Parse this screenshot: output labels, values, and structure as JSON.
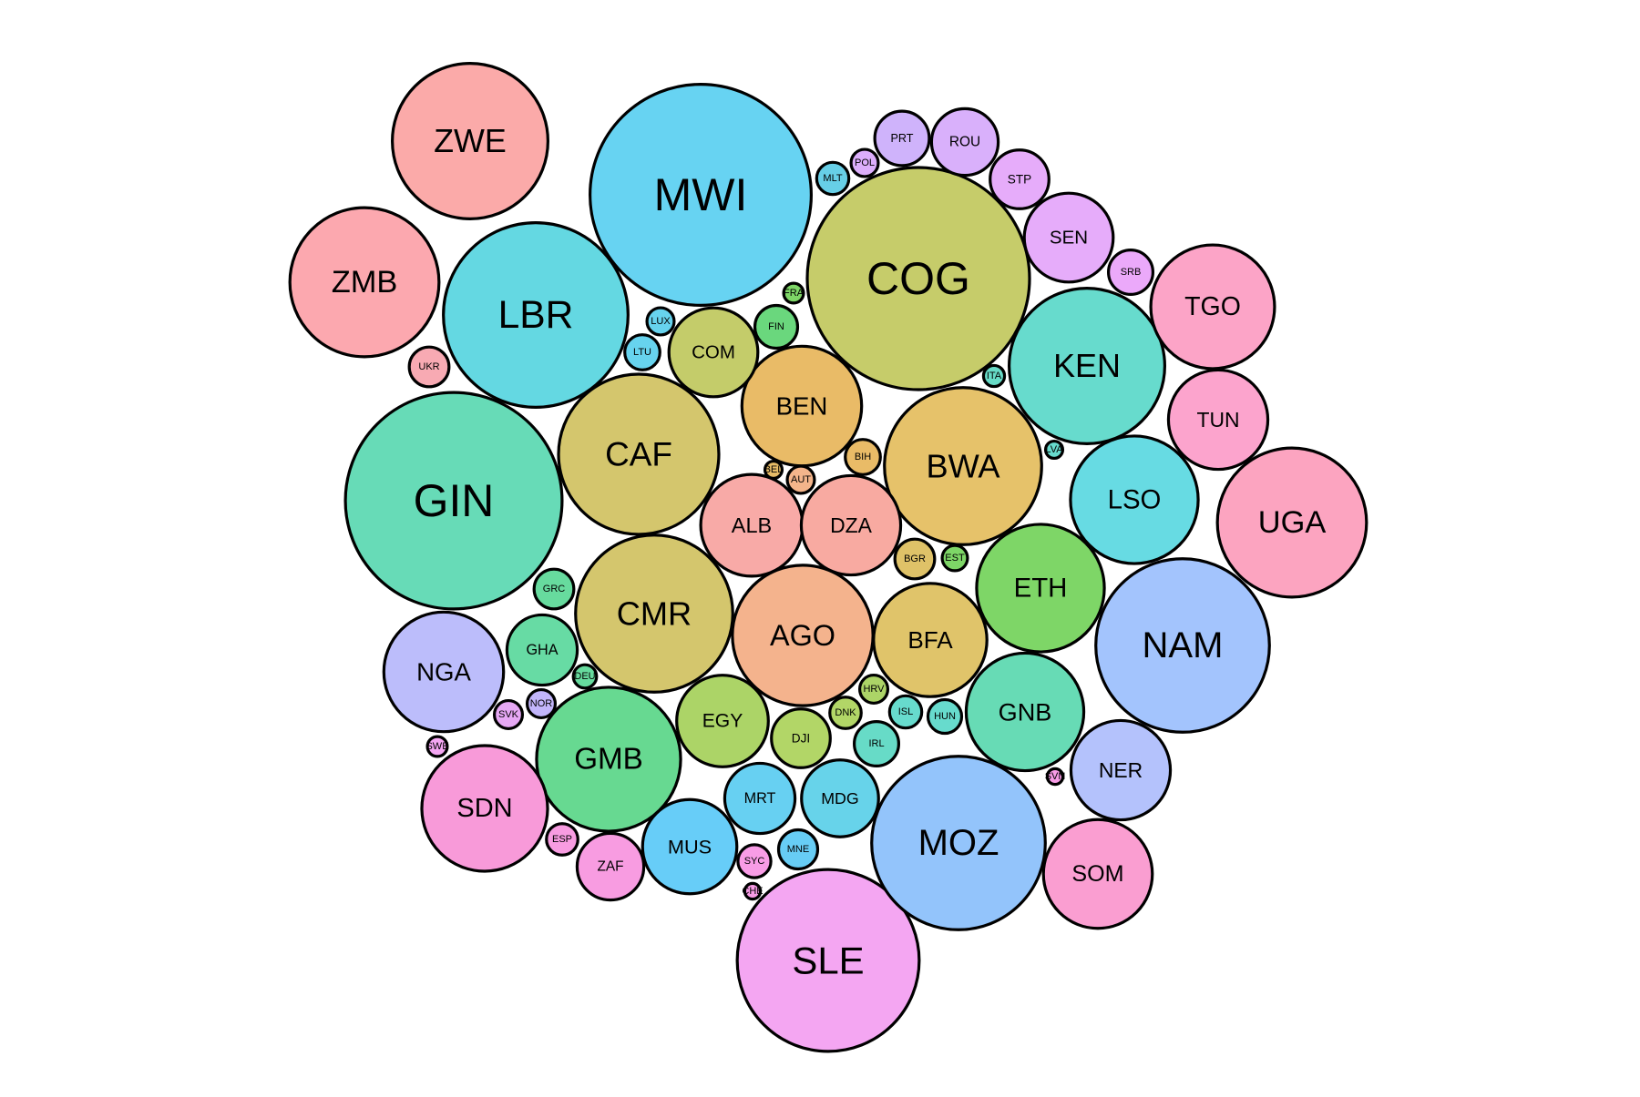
{
  "chart_data": {
    "type": "packed-bubble",
    "title": "",
    "xlabel": "",
    "ylabel": "",
    "legend": "none",
    "grid": false,
    "note": "Bubble area is proportional to value; values estimated in relative units (largest = 100).",
    "bubbles": [
      {
        "label": "COG",
        "value": 100,
        "color": "#c6cc6a"
      },
      {
        "label": "MWI",
        "value": 99,
        "color": "#67d3f2"
      },
      {
        "label": "GIN",
        "value": 95,
        "color": "#67dbb7"
      },
      {
        "label": "SLE",
        "value": 67,
        "color": "#f4a6f2"
      },
      {
        "label": "MOZ",
        "value": 61,
        "color": "#93c4fb"
      },
      {
        "label": "NAM",
        "value": 61,
        "color": "#a3c4fd"
      },
      {
        "label": "LBR",
        "value": 69,
        "color": "#64d8e2"
      },
      {
        "label": "BWA",
        "value": 50,
        "color": "#e6c26a"
      },
      {
        "label": "CMR",
        "value": 50,
        "color": "#d4c66d"
      },
      {
        "label": "CAF",
        "value": 52,
        "color": "#d4c66d"
      },
      {
        "label": "ZWE",
        "value": 49,
        "color": "#fbaaa9"
      },
      {
        "label": "AGO",
        "value": 40,
        "color": "#f4b38d"
      },
      {
        "label": "UGA",
        "value": 45,
        "color": "#fca4c0"
      },
      {
        "label": "KEN",
        "value": 49,
        "color": "#67dbcd"
      },
      {
        "label": "ZMB",
        "value": 45,
        "color": "#fca8af"
      },
      {
        "label": "GMB",
        "value": 42,
        "color": "#67d991"
      },
      {
        "label": "ETH",
        "value": 33,
        "color": "#7ed667"
      },
      {
        "label": "LSO",
        "value": 33,
        "color": "#67dbe3"
      },
      {
        "label": "GNB",
        "value": 28,
        "color": "#67dbb5"
      },
      {
        "label": "NGA",
        "value": 29,
        "color": "#bcbdfb"
      },
      {
        "label": "BEN",
        "value": 29,
        "color": "#e9bb67"
      },
      {
        "label": "TGO",
        "value": 31,
        "color": "#fca4c7"
      },
      {
        "label": "SDN",
        "value": 32,
        "color": "#f89ad9"
      },
      {
        "label": "BFA",
        "value": 26,
        "color": "#e0c46a"
      },
      {
        "label": "DZA",
        "value": 20,
        "color": "#f8aaa1"
      },
      {
        "label": "ALB",
        "value": 21,
        "color": "#f8aaa7"
      },
      {
        "label": "NER",
        "value": 20,
        "color": "#b4c2fc"
      },
      {
        "label": "SOM",
        "value": 24,
        "color": "#fa9ed1"
      },
      {
        "label": "MUS",
        "value": 18,
        "color": "#67cdf8"
      },
      {
        "label": "TUN",
        "value": 20,
        "color": "#fca4cd"
      },
      {
        "label": "EGY",
        "value": 17,
        "color": "#acd467"
      },
      {
        "label": "COM",
        "value": 16,
        "color": "#c4cc6a"
      },
      {
        "label": "MDG",
        "value": 12,
        "color": "#67d3ea"
      },
      {
        "label": "SEN",
        "value": 16,
        "color": "#e6acfa"
      },
      {
        "label": "ROU",
        "value": 9,
        "color": "#d9b0fb"
      },
      {
        "label": "MRT",
        "value": 10,
        "color": "#67d0f2"
      },
      {
        "label": "ZAF",
        "value": 9,
        "color": "#f89ce1"
      },
      {
        "label": "GHA",
        "value": 10,
        "color": "#67dba4"
      },
      {
        "label": "STP",
        "value": 7,
        "color": "#e6acfa"
      },
      {
        "label": "DJI",
        "value": 7,
        "color": "#b2d667"
      },
      {
        "label": "PRT",
        "value": 6,
        "color": "#cfb3fb"
      },
      {
        "label": "IRL",
        "value": 4,
        "color": "#67dbc7"
      },
      {
        "label": "SRB",
        "value": 4,
        "color": "#eba9fa"
      },
      {
        "label": "FIN",
        "value": 3.7,
        "color": "#6ad77d"
      },
      {
        "label": "GRC",
        "value": 3.2,
        "color": "#67db9e"
      },
      {
        "label": "BGR",
        "value": 3.2,
        "color": "#dfc268"
      },
      {
        "label": "MNE",
        "value": 3.1,
        "color": "#67cdf5"
      },
      {
        "label": "LTU",
        "value": 2.5,
        "color": "#67d3ee"
      },
      {
        "label": "BIH",
        "value": 2.5,
        "color": "#e9bb67"
      },
      {
        "label": "SYC",
        "value": 2.2,
        "color": "#f89ce6"
      },
      {
        "label": "UKR",
        "value": 3.2,
        "color": "#f8aab3"
      },
      {
        "label": "ISL",
        "value": 2.1,
        "color": "#67dbcd"
      },
      {
        "label": "HUN",
        "value": 2.3,
        "color": "#67dbcd"
      },
      {
        "label": "MLT",
        "value": 2.1,
        "color": "#67cfe7"
      },
      {
        "label": "DNK",
        "value": 2.0,
        "color": "#b2d667"
      },
      {
        "label": "ESP",
        "value": 2.0,
        "color": "#f89ce1"
      },
      {
        "label": "HRV",
        "value": 1.6,
        "color": "#acd467"
      },
      {
        "label": "NOR",
        "value": 1.6,
        "color": "#c2b5fb"
      },
      {
        "label": "SVK",
        "value": 1.6,
        "color": "#e6a8f4"
      },
      {
        "label": "AUT",
        "value": 1.5,
        "color": "#f4b58b"
      },
      {
        "label": "LUX",
        "value": 1.5,
        "color": "#67d3ee"
      },
      {
        "label": "POL",
        "value": 1.5,
        "color": "#dcaefb"
      },
      {
        "label": "EST",
        "value": 1.3,
        "color": "#7ed667"
      },
      {
        "label": "DEU",
        "value": 1.1,
        "color": "#67db9e"
      },
      {
        "label": "ITA",
        "value": 0.9,
        "color": "#67dbc7"
      },
      {
        "label": "SWE",
        "value": 0.8,
        "color": "#f4a6f2"
      },
      {
        "label": "FRA",
        "value": 0.8,
        "color": "#7ed667"
      },
      {
        "label": "BEL",
        "value": 0.6,
        "color": "#e6bb67"
      },
      {
        "label": "LVA",
        "value": 0.6,
        "color": "#67dbcd"
      },
      {
        "label": "SVN",
        "value": 0.5,
        "color": "#f89ce6"
      },
      {
        "label": "CHE",
        "value": 0.5,
        "color": "#f89ce6"
      }
    ]
  }
}
